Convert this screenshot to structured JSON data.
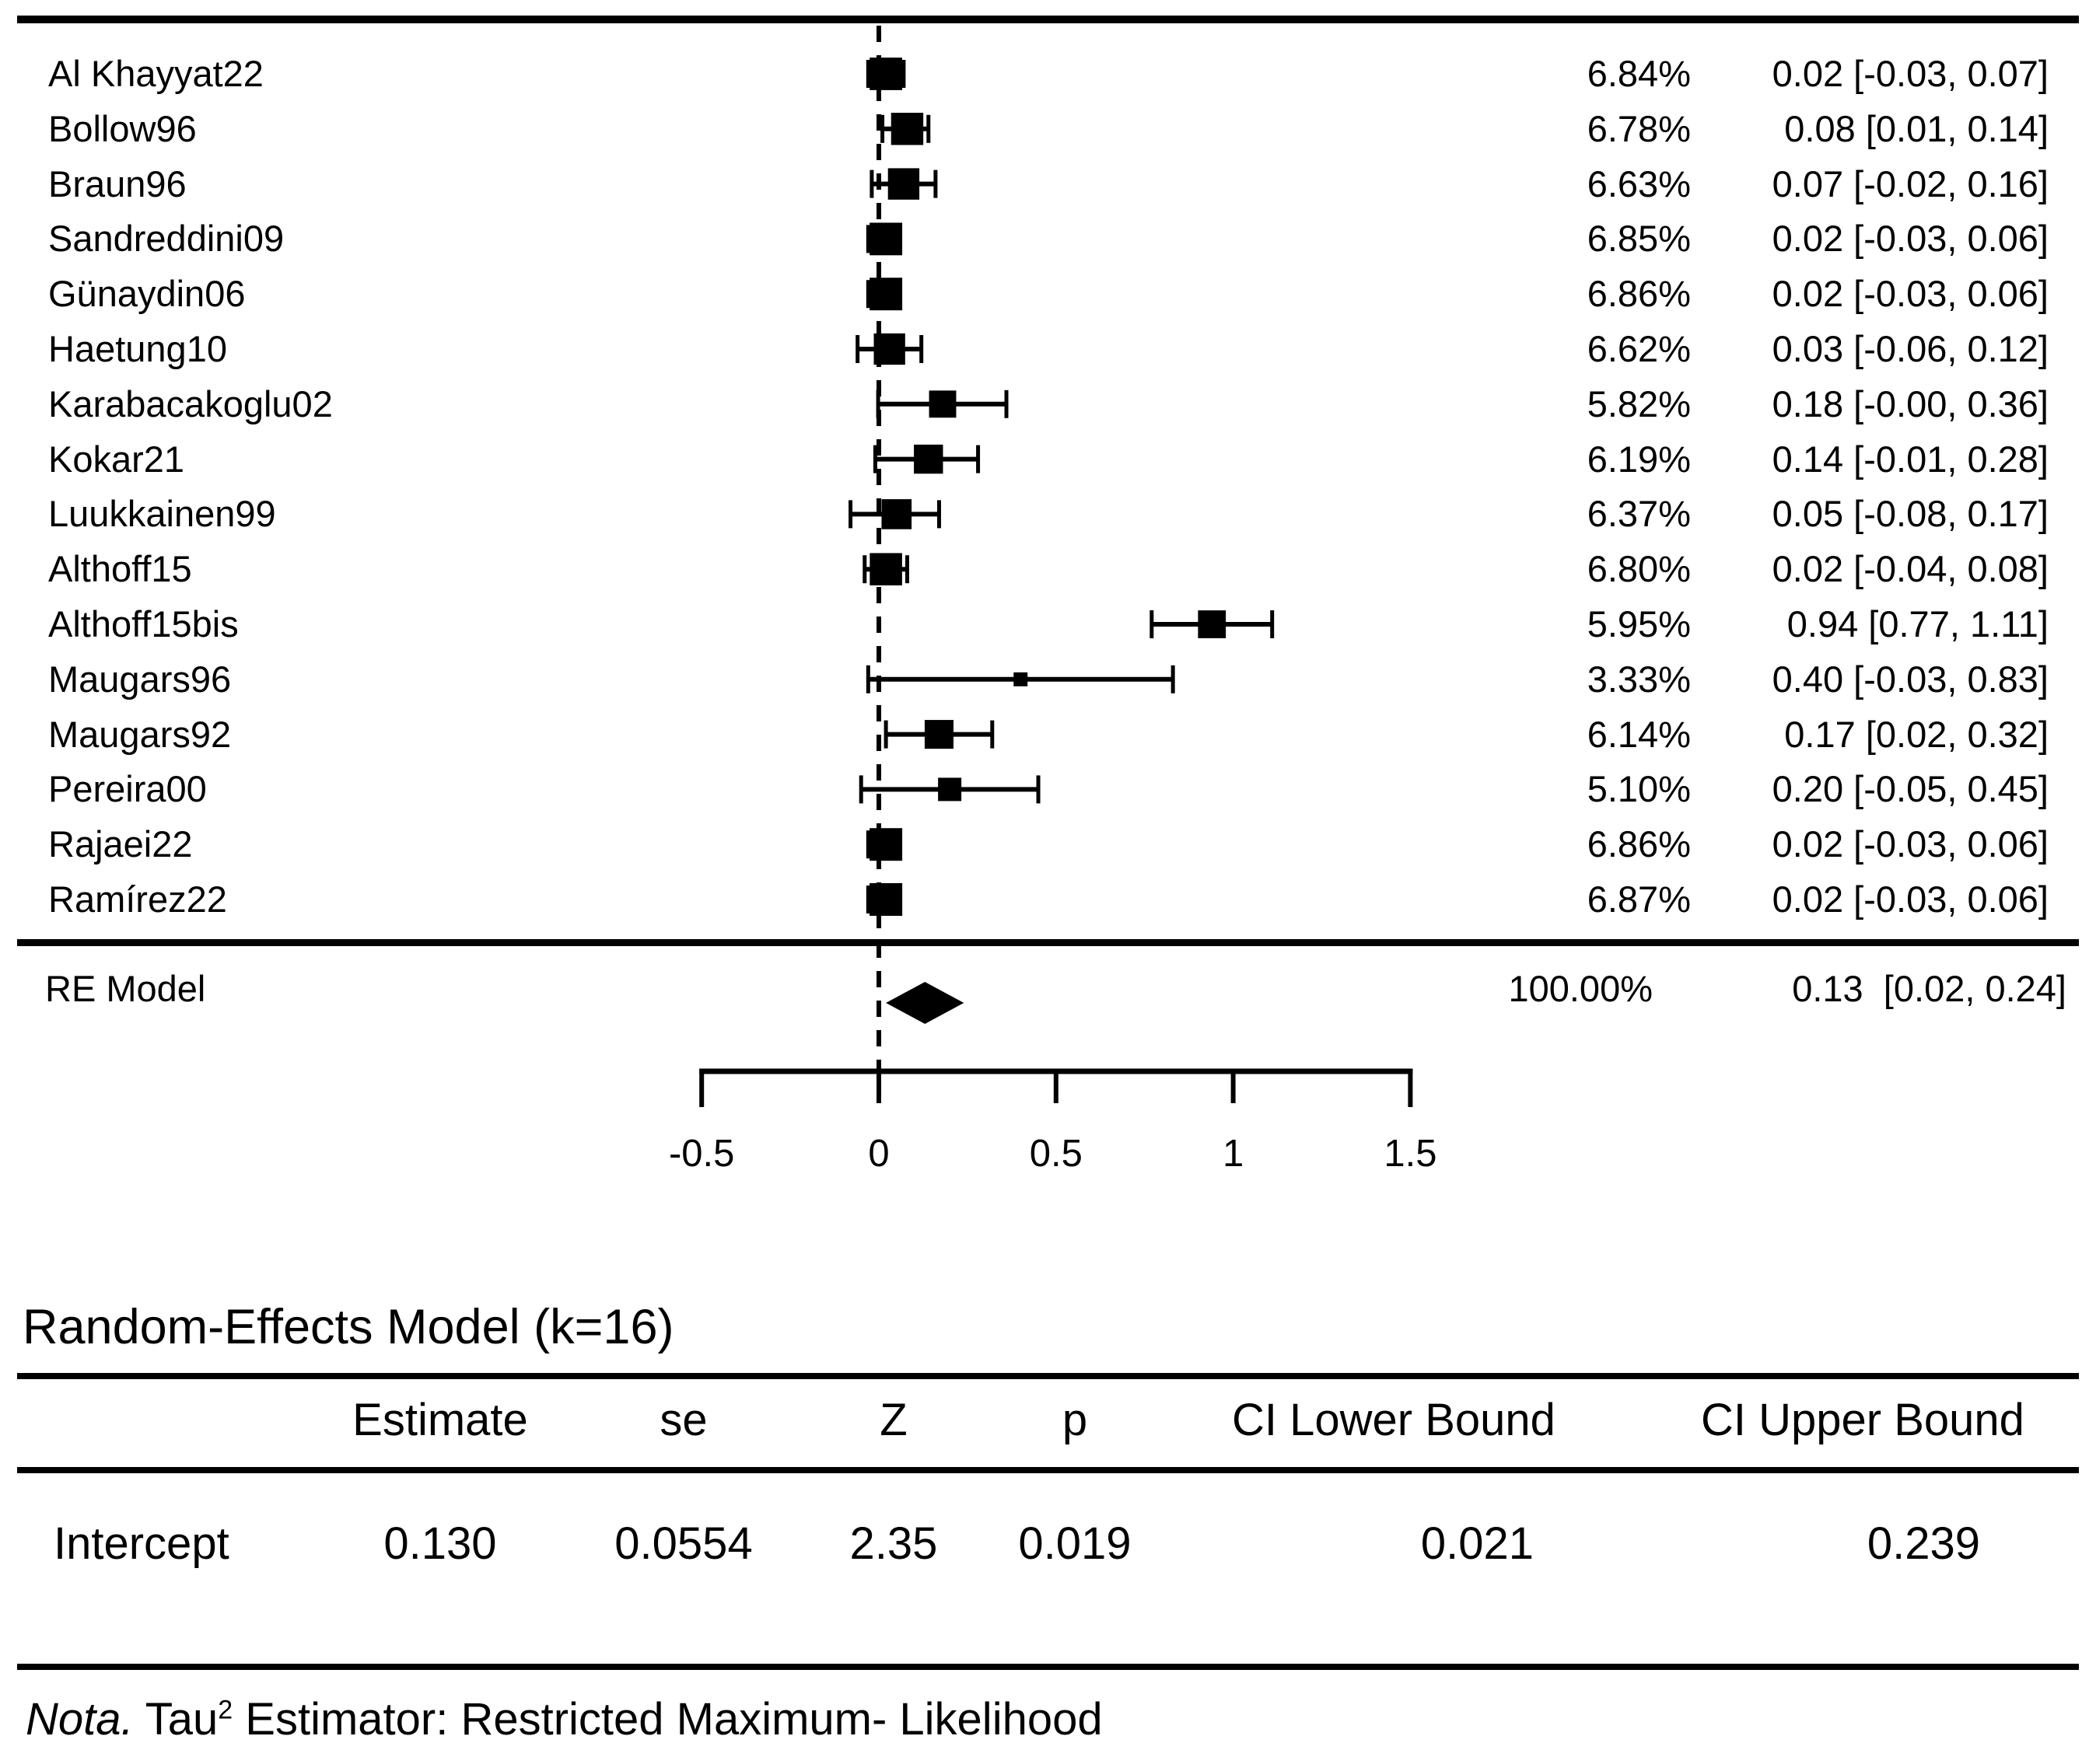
{
  "chart_data": {
    "type": "forest",
    "title": "",
    "x_axis": {
      "range": [
        -0.5,
        1.5
      ],
      "tick_values": [
        -0.5,
        0,
        0.5,
        1,
        1.5
      ],
      "tick_labels": [
        "-0.5",
        "0",
        "0.5",
        "1",
        "1.5"
      ],
      "zero_line_value": 0
    },
    "studies": [
      {
        "name": "Al Khayyat22",
        "effect": 0.02,
        "ci_lower": -0.03,
        "ci_upper": 0.07,
        "weight_pct": 6.84,
        "weight_label": "6.84%",
        "ci_label": "0.02 [-0.03, 0.07]"
      },
      {
        "name": "Bollow96",
        "effect": 0.08,
        "ci_lower": 0.01,
        "ci_upper": 0.14,
        "weight_pct": 6.78,
        "weight_label": "6.78%",
        "ci_label": "0.08 [0.01, 0.14]"
      },
      {
        "name": "Braun96",
        "effect": 0.07,
        "ci_lower": -0.02,
        "ci_upper": 0.16,
        "weight_pct": 6.63,
        "weight_label": "6.63%",
        "ci_label": "0.07 [-0.02, 0.16]"
      },
      {
        "name": "Sandreddini09",
        "effect": 0.02,
        "ci_lower": -0.03,
        "ci_upper": 0.06,
        "weight_pct": 6.85,
        "weight_label": "6.85%",
        "ci_label": "0.02 [-0.03, 0.06]"
      },
      {
        "name": "Günaydin06",
        "effect": 0.02,
        "ci_lower": -0.03,
        "ci_upper": 0.06,
        "weight_pct": 6.86,
        "weight_label": "6.86%",
        "ci_label": "0.02 [-0.03, 0.06]"
      },
      {
        "name": "Haetung10",
        "effect": 0.03,
        "ci_lower": -0.06,
        "ci_upper": 0.12,
        "weight_pct": 6.62,
        "weight_label": "6.62%",
        "ci_label": "0.03 [-0.06, 0.12]"
      },
      {
        "name": "Karabacakoglu02",
        "effect": 0.18,
        "ci_lower": -0.002,
        "ci_upper": 0.36,
        "weight_pct": 5.82,
        "weight_label": "5.82%",
        "ci_label": "0.18 [-0.00, 0.36]"
      },
      {
        "name": "Kokar21",
        "effect": 0.14,
        "ci_lower": -0.01,
        "ci_upper": 0.28,
        "weight_pct": 6.19,
        "weight_label": "6.19%",
        "ci_label": "0.14 [-0.01, 0.28]"
      },
      {
        "name": "Luukkainen99",
        "effect": 0.05,
        "ci_lower": -0.08,
        "ci_upper": 0.17,
        "weight_pct": 6.37,
        "weight_label": "6.37%",
        "ci_label": "0.05 [-0.08, 0.17]"
      },
      {
        "name": "Althoff15",
        "effect": 0.02,
        "ci_lower": -0.04,
        "ci_upper": 0.08,
        "weight_pct": 6.8,
        "weight_label": "6.80%",
        "ci_label": "0.02 [-0.04, 0.08]"
      },
      {
        "name": "Althoff15bis",
        "effect": 0.94,
        "ci_lower": 0.77,
        "ci_upper": 1.11,
        "weight_pct": 5.95,
        "weight_label": "5.95%",
        "ci_label": "0.94 [0.77, 1.11]"
      },
      {
        "name": "Maugars96",
        "effect": 0.4,
        "ci_lower": -0.03,
        "ci_upper": 0.83,
        "weight_pct": 3.33,
        "weight_label": "3.33%",
        "ci_label": "0.40 [-0.03, 0.83]"
      },
      {
        "name": "Maugars92",
        "effect": 0.17,
        "ci_lower": 0.02,
        "ci_upper": 0.32,
        "weight_pct": 6.14,
        "weight_label": "6.14%",
        "ci_label": "0.17 [0.02, 0.32]"
      },
      {
        "name": "Pereira00",
        "effect": 0.2,
        "ci_lower": -0.05,
        "ci_upper": 0.45,
        "weight_pct": 5.1,
        "weight_label": "5.10%",
        "ci_label": "0.20 [-0.05, 0.45]"
      },
      {
        "name": "Rajaei22",
        "effect": 0.02,
        "ci_lower": -0.03,
        "ci_upper": 0.06,
        "weight_pct": 6.86,
        "weight_label": "6.86%",
        "ci_label": "0.02 [-0.03, 0.06]"
      },
      {
        "name": "Ramírez22",
        "effect": 0.02,
        "ci_lower": -0.03,
        "ci_upper": 0.06,
        "weight_pct": 6.87,
        "weight_label": "6.87%",
        "ci_label": "0.02 [-0.03, 0.06]"
      }
    ],
    "re_model": {
      "name": "RE Model",
      "effect": 0.13,
      "ci_lower": 0.02,
      "ci_upper": 0.24,
      "weight_pct": 100.0,
      "weight_label": "100.00%",
      "ci_label": "0.13  [0.02, 0.24]"
    }
  },
  "summary": {
    "heading": "Random-Effects Model (k=16)",
    "table": {
      "headers": [
        "",
        "Estimate",
        "se",
        "Z",
        "p",
        "CI Lower Bound",
        "CI Upper Bound"
      ],
      "rows": [
        {
          "label": "Intercept",
          "estimate": "0.130",
          "se": "0.0554",
          "z": "2.35",
          "p": "0.019",
          "ci_lower": "0.021",
          "ci_upper": "0.239"
        }
      ]
    },
    "note": {
      "lead": "Nota.",
      "mid": " Tau",
      "sup": "2",
      "rest": " Estimator: Restricted Maximum- Likelihood"
    }
  }
}
